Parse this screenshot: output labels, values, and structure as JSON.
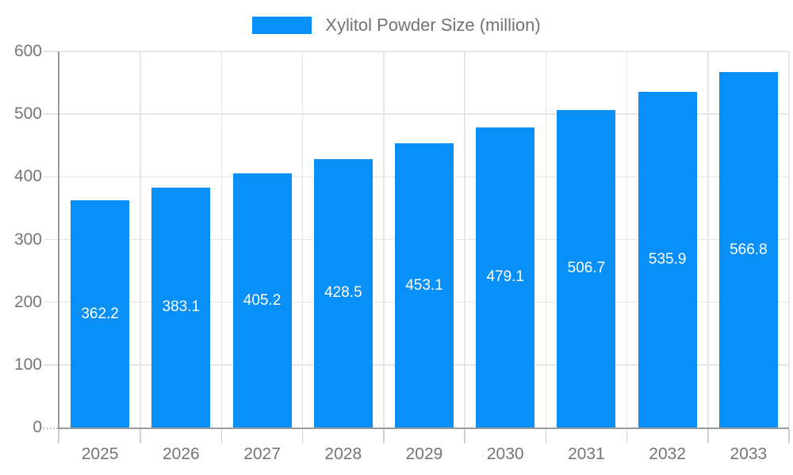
{
  "legend": {
    "label": "Xylitol Powder Size (million)"
  },
  "colors": {
    "bar": "#0890F8",
    "grid": "#E6E6E6",
    "axis": "#9B9B9B",
    "x_tick": "#CFCFCF",
    "y_tick": "#E2E2E2",
    "tick_label": "#757575",
    "legend_text": "#737373",
    "value_label": "#FFFFFF"
  },
  "chart_data": {
    "type": "bar",
    "title": "Xylitol Powder Size (million)",
    "series_name": "Xylitol Powder Size (million)",
    "categories": [
      "2025",
      "2026",
      "2027",
      "2028",
      "2029",
      "2030",
      "2031",
      "2032",
      "2033"
    ],
    "values": [
      362.2,
      383.1,
      405.2,
      428.5,
      453.1,
      479.1,
      506.7,
      535.9,
      566.8
    ],
    "xlabel": "",
    "ylabel": "",
    "ylim": [
      0,
      600
    ],
    "yticks": [
      0,
      100,
      200,
      300,
      400,
      500,
      600
    ],
    "grid": true,
    "legend_position": "top",
    "value_label_position": "inside-center"
  }
}
